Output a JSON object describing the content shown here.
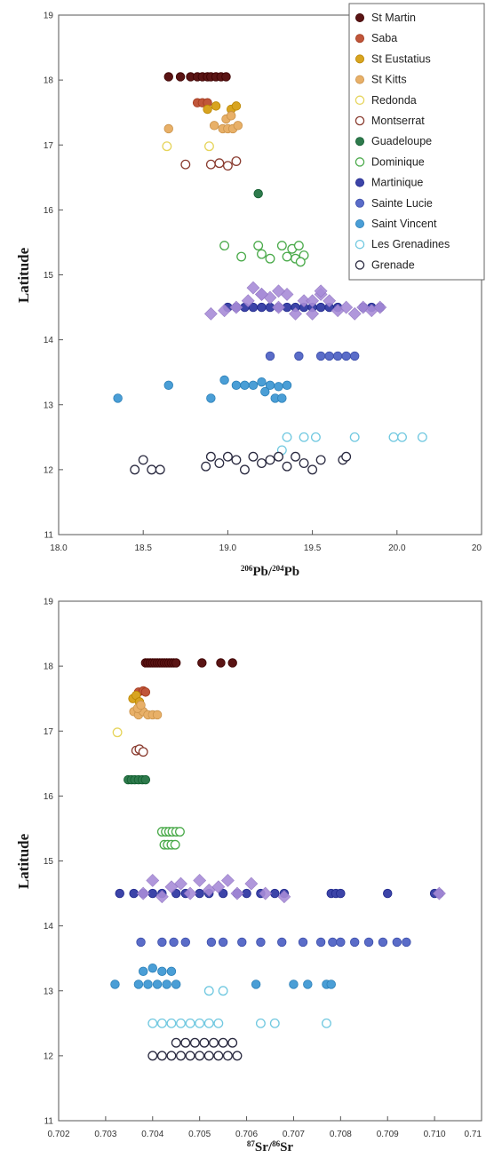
{
  "legend": [
    {
      "name": "St Martin",
      "color": "#5a1414",
      "fill": true
    },
    {
      "name": "Saba",
      "color": "#c0563a",
      "fill": true
    },
    {
      "name": "St Eustatius",
      "color": "#d8a420",
      "fill": true
    },
    {
      "name": "St Kitts",
      "color": "#e8b068",
      "fill": true
    },
    {
      "name": "Redonda",
      "color": "#e6d45a",
      "fill": false
    },
    {
      "name": "Montserrat",
      "color": "#8a3c30",
      "fill": false
    },
    {
      "name": "Guadeloupe",
      "color": "#2e7a4c",
      "fill": true
    },
    {
      "name": "Dominique",
      "color": "#4aaa4a",
      "fill": false
    },
    {
      "name": "Martinique",
      "color": "#3c44a8",
      "fill": true
    },
    {
      "name": "Sainte Lucie",
      "color": "#5a6cc8",
      "fill": true
    },
    {
      "name": "Saint Vincent",
      "color": "#4a9ed6",
      "fill": true
    },
    {
      "name": "Les Grenadines",
      "color": "#70c8e0",
      "fill": false
    },
    {
      "name": "Grenade",
      "color": "#2a2a40",
      "fill": false
    }
  ],
  "extra_series_color": "#a88cd8",
  "chart_data": [
    {
      "type": "scatter",
      "xlabel": "206Pb/204Pb",
      "ylabel": "Latitude",
      "xlim": [
        18.0,
        20.5
      ],
      "ylim": [
        11,
        19
      ],
      "x_ticks": [
        "18.0",
        "18.5",
        "19.0",
        "19.5",
        "20.0",
        "20"
      ],
      "y_ticks": [
        "11",
        "12",
        "13",
        "14",
        "15",
        "16",
        "17",
        "18",
        "19"
      ],
      "legend_position": "top-right",
      "grid": false,
      "series": [
        {
          "name": "St Martin",
          "marker": "circle",
          "x": [
            18.65,
            18.72,
            18.78,
            18.82,
            18.85,
            18.88,
            18.9,
            18.93,
            18.96,
            18.99
          ],
          "y": [
            18.05,
            18.05,
            18.05,
            18.05,
            18.05,
            18.05,
            18.05,
            18.05,
            18.05,
            18.05
          ]
        },
        {
          "name": "Saba",
          "marker": "circle",
          "x": [
            18.82,
            18.85,
            18.88
          ],
          "y": [
            17.65,
            17.65,
            17.65
          ]
        },
        {
          "name": "St Eustatius",
          "marker": "circle",
          "x": [
            18.88,
            18.93,
            19.02,
            19.05
          ],
          "y": [
            17.55,
            17.6,
            17.55,
            17.6
          ]
        },
        {
          "name": "St Kitts",
          "marker": "circle",
          "x": [
            18.65,
            18.92,
            18.97,
            19.0,
            19.03,
            19.06,
            18.99,
            19.02
          ],
          "y": [
            17.25,
            17.3,
            17.25,
            17.25,
            17.25,
            17.3,
            17.4,
            17.45
          ]
        },
        {
          "name": "Redonda",
          "marker": "circle",
          "x": [
            18.64,
            18.89
          ],
          "y": [
            16.98,
            16.98
          ]
        },
        {
          "name": "Montserrat",
          "marker": "circle",
          "x": [
            18.75,
            18.9,
            18.95,
            19.0,
            19.05
          ],
          "y": [
            16.7,
            16.7,
            16.72,
            16.68,
            16.75
          ]
        },
        {
          "name": "Guadeloupe",
          "marker": "circle",
          "x": [
            19.18
          ],
          "y": [
            16.25
          ]
        },
        {
          "name": "Dominique",
          "marker": "circle",
          "x": [
            18.98,
            19.08,
            19.18,
            19.2,
            19.25,
            19.32,
            19.35,
            19.38,
            19.4,
            19.42,
            19.45,
            19.43
          ],
          "y": [
            15.45,
            15.28,
            15.45,
            15.32,
            15.25,
            15.45,
            15.28,
            15.4,
            15.25,
            15.45,
            15.3,
            15.2
          ]
        },
        {
          "name": "Martinique",
          "marker": "circle",
          "x": [
            19.0,
            19.05,
            19.1,
            19.15,
            19.2,
            19.25,
            19.3,
            19.35,
            19.4,
            19.45,
            19.5,
            19.55,
            19.6,
            19.65,
            19.8,
            19.85,
            19.9
          ],
          "y": [
            14.5,
            14.5,
            14.5,
            14.5,
            14.5,
            14.5,
            14.5,
            14.5,
            14.5,
            14.5,
            14.5,
            14.5,
            14.5,
            14.5,
            14.5,
            14.5,
            14.5
          ]
        },
        {
          "name": "Sainte Lucie",
          "marker": "circle",
          "x": [
            19.25,
            19.42,
            19.55,
            19.6,
            19.65,
            19.7,
            19.75
          ],
          "y": [
            13.75,
            13.75,
            13.75,
            13.75,
            13.75,
            13.75,
            13.75
          ]
        },
        {
          "name": "Saint Vincent",
          "marker": "circle",
          "x": [
            18.35,
            18.65,
            18.9,
            18.98,
            19.05,
            19.1,
            19.15,
            19.2,
            19.25,
            19.3,
            19.35,
            19.28,
            19.32,
            19.22
          ],
          "y": [
            13.1,
            13.3,
            13.1,
            13.38,
            13.3,
            13.3,
            13.3,
            13.35,
            13.3,
            13.28,
            13.3,
            13.1,
            13.1,
            13.2
          ]
        },
        {
          "name": "Les Grenadines",
          "marker": "circle",
          "x": [
            19.35,
            19.45,
            19.52,
            19.75,
            19.98,
            20.03,
            20.15,
            19.32
          ],
          "y": [
            12.5,
            12.5,
            12.5,
            12.5,
            12.5,
            12.5,
            12.5,
            12.3
          ]
        },
        {
          "name": "Grenade",
          "marker": "circle",
          "x": [
            18.45,
            18.5,
            18.55,
            18.6,
            18.87,
            18.9,
            18.95,
            19.0,
            19.05,
            19.1,
            19.15,
            19.2,
            19.25,
            19.3,
            19.35,
            19.4,
            19.45,
            19.5,
            19.55,
            19.68,
            19.7
          ],
          "y": [
            12.0,
            12.15,
            12.0,
            12.0,
            12.05,
            12.2,
            12.1,
            12.2,
            12.15,
            12.0,
            12.2,
            12.1,
            12.15,
            12.2,
            12.05,
            12.2,
            12.1,
            12.0,
            12.15,
            12.15,
            12.2
          ]
        },
        {
          "marker": "diamond",
          "x": [
            18.9,
            18.98,
            19.05,
            19.12,
            19.15,
            19.2,
            19.25,
            19.3,
            19.35,
            19.4,
            19.45,
            19.5,
            19.55,
            19.6,
            19.65,
            19.7,
            19.75,
            19.8,
            19.85,
            19.9,
            19.2,
            19.3,
            19.5,
            19.55
          ],
          "y": [
            14.4,
            14.45,
            14.5,
            14.6,
            14.8,
            14.7,
            14.65,
            14.5,
            14.7,
            14.4,
            14.6,
            14.4,
            14.7,
            14.6,
            14.45,
            14.5,
            14.4,
            14.5,
            14.45,
            14.5,
            14.7,
            14.75,
            14.6,
            14.75
          ]
        }
      ]
    },
    {
      "type": "scatter",
      "xlabel": "87Sr/86Sr",
      "ylabel": "Latitude",
      "xlim": [
        0.702,
        0.711
      ],
      "ylim": [
        11,
        19
      ],
      "x_ticks": [
        "0.702",
        "0.703",
        "0.704",
        "0.705",
        "0.706",
        "0.707",
        "0.708",
        "0.709",
        "0.710",
        "0.71"
      ],
      "y_ticks": [
        "11",
        "12",
        "13",
        "14",
        "15",
        "16",
        "17",
        "18",
        "19"
      ],
      "grid": false,
      "series": [
        {
          "name": "St Martin",
          "marker": "circle",
          "x": [
            0.70385,
            0.7039,
            0.70395,
            0.704,
            0.70405,
            0.7041,
            0.70415,
            0.7042,
            0.70425,
            0.7043,
            0.70435,
            0.7044,
            0.70445,
            0.7045,
            0.70505,
            0.70545,
            0.7057
          ],
          "y": [
            18.05,
            18.05,
            18.05,
            18.05,
            18.05,
            18.05,
            18.05,
            18.05,
            18.05,
            18.05,
            18.05,
            18.05,
            18.05,
            18.05,
            18.05,
            18.05,
            18.05
          ]
        },
        {
          "name": "Saba",
          "marker": "circle",
          "x": [
            0.7037,
            0.7038,
            0.70385
          ],
          "y": [
            17.6,
            17.62,
            17.6
          ]
        },
        {
          "name": "St Eustatius",
          "marker": "circle",
          "x": [
            0.70358,
            0.70365,
            0.70372
          ],
          "y": [
            17.5,
            17.55,
            17.45
          ]
        },
        {
          "name": "St Kitts",
          "marker": "circle",
          "x": [
            0.7036,
            0.7037,
            0.7038,
            0.7039,
            0.704,
            0.7041,
            0.70368,
            0.70375
          ],
          "y": [
            17.3,
            17.25,
            17.3,
            17.25,
            17.25,
            17.25,
            17.35,
            17.4
          ]
        },
        {
          "name": "Redonda",
          "marker": "circle",
          "x": [
            0.70325
          ],
          "y": [
            16.98
          ]
        },
        {
          "name": "Montserrat",
          "marker": "circle",
          "x": [
            0.70365,
            0.70372,
            0.7038
          ],
          "y": [
            16.7,
            16.72,
            16.68
          ]
        },
        {
          "name": "Guadeloupe",
          "marker": "circle",
          "x": [
            0.70348,
            0.70355,
            0.70362,
            0.7037,
            0.70378,
            0.70385
          ],
          "y": [
            16.25,
            16.25,
            16.25,
            16.25,
            16.25,
            16.25
          ]
        },
        {
          "name": "Dominique",
          "marker": "circle",
          "x": [
            0.7042,
            0.70428,
            0.70435,
            0.70442,
            0.7045,
            0.70458,
            0.70425,
            0.70432,
            0.7044,
            0.70448
          ],
          "y": [
            15.45,
            15.45,
            15.45,
            15.45,
            15.45,
            15.45,
            15.25,
            15.25,
            15.25,
            15.25
          ]
        },
        {
          "name": "Martinique",
          "marker": "circle",
          "x": [
            0.7033,
            0.7036,
            0.7038,
            0.704,
            0.7042,
            0.7045,
            0.7047,
            0.705,
            0.7052,
            0.7055,
            0.7058,
            0.706,
            0.7063,
            0.7066,
            0.7068,
            0.7078,
            0.7079,
            0.708,
            0.709,
            0.71,
            0.7101
          ],
          "y": [
            14.5,
            14.5,
            14.5,
            14.5,
            14.5,
            14.5,
            14.5,
            14.5,
            14.5,
            14.5,
            14.5,
            14.5,
            14.5,
            14.5,
            14.5,
            14.5,
            14.5,
            14.5,
            14.5,
            14.5,
            14.5
          ]
        },
        {
          "name": "Sainte Lucie",
          "marker": "circle",
          "x": [
            0.70375,
            0.7042,
            0.70445,
            0.7047,
            0.70525,
            0.7055,
            0.7059,
            0.7063,
            0.70675,
            0.7072,
            0.70758,
            0.70783,
            0.708,
            0.7083,
            0.7086,
            0.7089,
            0.7092,
            0.7094
          ],
          "y": [
            13.75,
            13.75,
            13.75,
            13.75,
            13.75,
            13.75,
            13.75,
            13.75,
            13.75,
            13.75,
            13.75,
            13.75,
            13.75,
            13.75,
            13.75,
            13.75,
            13.75,
            13.75
          ]
        },
        {
          "name": "Saint Vincent",
          "marker": "circle",
          "x": [
            0.7032,
            0.7037,
            0.7039,
            0.7041,
            0.7043,
            0.7045,
            0.7038,
            0.704,
            0.7042,
            0.7044,
            0.7062,
            0.707,
            0.7073,
            0.7077,
            0.7078
          ],
          "y": [
            13.1,
            13.1,
            13.1,
            13.1,
            13.1,
            13.1,
            13.3,
            13.35,
            13.3,
            13.3,
            13.1,
            13.1,
            13.1,
            13.1,
            13.1
          ]
        },
        {
          "name": "Les Grenadines",
          "marker": "circle",
          "x": [
            0.704,
            0.7042,
            0.7044,
            0.7046,
            0.7048,
            0.705,
            0.7052,
            0.7054,
            0.7063,
            0.7066,
            0.7077,
            0.7052,
            0.7055
          ],
          "y": [
            12.5,
            12.5,
            12.5,
            12.5,
            12.5,
            12.5,
            12.5,
            12.5,
            12.5,
            12.5,
            12.5,
            13.0,
            13.0
          ]
        },
        {
          "name": "Grenade",
          "marker": "circle",
          "x": [
            0.704,
            0.7042,
            0.7044,
            0.7046,
            0.7048,
            0.705,
            0.7052,
            0.7054,
            0.7056,
            0.7058,
            0.7045,
            0.7047,
            0.7049,
            0.7051,
            0.7053,
            0.7055,
            0.7057
          ],
          "y": [
            12.0,
            12.0,
            12.0,
            12.0,
            12.0,
            12.0,
            12.0,
            12.0,
            12.0,
            12.0,
            12.2,
            12.2,
            12.2,
            12.2,
            12.2,
            12.2,
            12.2
          ]
        },
        {
          "marker": "diamond",
          "x": [
            0.7038,
            0.704,
            0.7042,
            0.7044,
            0.7046,
            0.7048,
            0.705,
            0.7052,
            0.7054,
            0.7056,
            0.7058,
            0.7061,
            0.7064,
            0.7068,
            0.7101
          ],
          "y": [
            14.5,
            14.7,
            14.45,
            14.6,
            14.65,
            14.5,
            14.7,
            14.55,
            14.6,
            14.7,
            14.5,
            14.65,
            14.5,
            14.45,
            14.5
          ]
        }
      ]
    }
  ]
}
